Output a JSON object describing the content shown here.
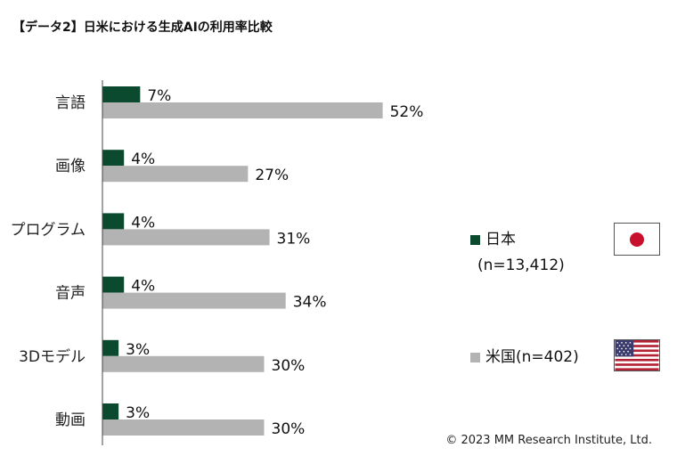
{
  "title": "【データ2】日米における生成AIの利用率比較",
  "copyright": "© 2023 MM Research Institute, Ltd.",
  "legend": {
    "japan_label": "日本",
    "japan_n": "(n=13,412)",
    "us_label": "米国(n=402)"
  },
  "colors": {
    "japan": "#0c4a2f",
    "us": "#b3b3b3",
    "axis": "#444444"
  },
  "icons": {
    "japan_flag": "japan-flag-icon",
    "us_flag": "us-flag-icon"
  },
  "chart_data": {
    "type": "bar",
    "orientation": "horizontal",
    "categories": [
      "言語",
      "画像",
      "プログラム",
      "音声",
      "3Dモデル",
      "動画"
    ],
    "series": [
      {
        "name": "日本",
        "values": [
          7,
          4,
          4,
          4,
          3,
          3
        ],
        "labels": [
          "7%",
          "4%",
          "4%",
          "4%",
          "3%",
          "3%"
        ]
      },
      {
        "name": "米国",
        "values": [
          52,
          27,
          31,
          34,
          30,
          30
        ],
        "labels": [
          "52%",
          "27%",
          "31%",
          "34%",
          "30%",
          "30%"
        ]
      }
    ],
    "grid": false,
    "legend_position": "right"
  }
}
